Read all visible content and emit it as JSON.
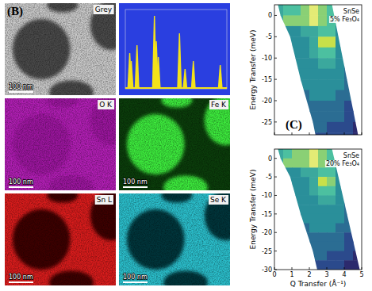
{
  "panels": {
    "b": {
      "label": "(B)",
      "micrographs": [
        {
          "title": "Grey",
          "color": "#c9c9c9",
          "particle_color": "#4a4a4a",
          "scale_bar": "100 nm"
        },
        {
          "title": "O K",
          "color": "#b11fb4",
          "particle_color": "#9c189f",
          "scale_bar": "100 nm"
        },
        {
          "title": "Fe K",
          "color": "#0b3d0b",
          "particle_color": "#3cea3c",
          "scale_bar": "100 nm"
        },
        {
          "title": "Sn L",
          "color": "#d81c1c",
          "particle_color": "#3c0606",
          "scale_bar": "100 nm"
        },
        {
          "title": "Se K",
          "color": "#2bbfcc",
          "particle_color": "#06363a",
          "scale_bar": "100 nm"
        }
      ]
    },
    "c": {
      "label": "(C)"
    }
  },
  "chart_data": [
    {
      "type": "spectrum",
      "x": [
        0.52,
        0.7,
        1.38,
        3.44,
        3.66,
        3.9,
        6.4,
        7.06,
        8.04,
        11.22
      ],
      "values": [
        45,
        35,
        55,
        92,
        60,
        40,
        70,
        25,
        35,
        30
      ],
      "xlim": [
        0,
        12
      ],
      "ylim": [
        0,
        100
      ],
      "color": "#f4e21a",
      "tick_labels": false
    },
    {
      "type": "heatmap",
      "text": [
        "SnSe",
        "5% Fe₃O₄"
      ],
      "ylabel": "Energy Transfer (meV)",
      "x_bins": [
        0,
        0.5,
        1,
        1.5,
        2,
        2.5,
        3,
        3.5,
        4,
        4.5,
        5
      ],
      "y_bins": [
        2.5,
        0,
        -2.5,
        -5,
        -7.5,
        -10,
        -12.5,
        -15,
        -17.5,
        -20,
        -22.5,
        -25,
        -27.5,
        -30
      ],
      "cells": [
        [
          5,
          6,
          6,
          7,
          9,
          7,
          6,
          null,
          null,
          null
        ],
        [
          5,
          7,
          7,
          7,
          9,
          7,
          6,
          5,
          null,
          null
        ],
        [
          null,
          4,
          4,
          5,
          5,
          6,
          6,
          4,
          null,
          null
        ],
        [
          null,
          4,
          4,
          4,
          5,
          8,
          8,
          4,
          null,
          null
        ],
        [
          null,
          4,
          4,
          4,
          5,
          6,
          6,
          4,
          null,
          null
        ],
        [
          null,
          null,
          4,
          4,
          4,
          5,
          5,
          4,
          3,
          null
        ],
        [
          null,
          null,
          4,
          4,
          4,
          4,
          4,
          4,
          3,
          null
        ],
        [
          null,
          null,
          3,
          4,
          4,
          4,
          4,
          4,
          3,
          null
        ],
        [
          null,
          null,
          null,
          3,
          4,
          4,
          4,
          3,
          3,
          null
        ],
        [
          null,
          null,
          null,
          3,
          3,
          3,
          3,
          3,
          2,
          2
        ],
        [
          null,
          null,
          null,
          3,
          3,
          3,
          3,
          3,
          2,
          2
        ],
        [
          null,
          null,
          null,
          null,
          3,
          3,
          2,
          2,
          2,
          1
        ],
        [
          null,
          null,
          null,
          null,
          2,
          2,
          2,
          2,
          2,
          1
        ]
      ],
      "cell_range": [
        0,
        10
      ],
      "coverage": {
        "q": [
          0.2,
          3.3,
          4.89,
          2.45,
          2.2,
          1.5,
          0.9,
          0.35
        ],
        "e": [
          2.5,
          2.5,
          -30,
          -30,
          -25,
          -15,
          -5,
          0
        ]
      },
      "xlim": [
        0,
        5
      ],
      "ylim": [
        -28,
        2.5
      ],
      "xticks": [
        0,
        1,
        2,
        3,
        4,
        5
      ],
      "yticks": [
        0,
        -5,
        -10,
        -15,
        -20,
        -25
      ],
      "tick_labels": "y"
    },
    {
      "type": "heatmap",
      "text": [
        "SnSe",
        "20% Fe₃O₄"
      ],
      "ylabel": "Energy Transfer (meV)",
      "xlabel": "Q Transfer (Å⁻¹)",
      "x_bins": [
        0,
        0.5,
        1,
        1.5,
        2,
        2.5,
        3,
        3.5,
        4,
        4.5,
        5
      ],
      "y_bins": [
        2.5,
        0,
        -2.5,
        -5,
        -7.5,
        -10,
        -12.5,
        -15,
        -17.5,
        -20,
        -22.5,
        -25,
        -27.5,
        -30
      ],
      "cells": [
        [
          5,
          6,
          7,
          7,
          9,
          7,
          6,
          null,
          null,
          null
        ],
        [
          5,
          7,
          7,
          7,
          9,
          7,
          6,
          5,
          null,
          null
        ],
        [
          null,
          4,
          4,
          5,
          5,
          6,
          6,
          4,
          null,
          null
        ],
        [
          null,
          4,
          4,
          4,
          5,
          8,
          7,
          4,
          null,
          null
        ],
        [
          null,
          4,
          4,
          4,
          5,
          6,
          6,
          4,
          null,
          null
        ],
        [
          null,
          null,
          4,
          4,
          4,
          5,
          5,
          4,
          3,
          null
        ],
        [
          null,
          null,
          4,
          4,
          4,
          4,
          4,
          4,
          3,
          null
        ],
        [
          null,
          null,
          3,
          4,
          4,
          4,
          4,
          4,
          3,
          null
        ],
        [
          null,
          null,
          null,
          3,
          4,
          4,
          4,
          3,
          3,
          null
        ],
        [
          null,
          null,
          null,
          3,
          3,
          3,
          3,
          3,
          2,
          2
        ],
        [
          null,
          null,
          null,
          3,
          3,
          3,
          3,
          3,
          2,
          2
        ],
        [
          null,
          null,
          null,
          null,
          3,
          3,
          2,
          2,
          2,
          1
        ],
        [
          null,
          null,
          null,
          null,
          2,
          2,
          2,
          2,
          1,
          1
        ]
      ],
      "cell_range": [
        0,
        10
      ],
      "coverage": {
        "q": [
          0.2,
          3.3,
          4.89,
          2.45,
          2.2,
          1.5,
          0.9,
          0.35
        ],
        "e": [
          2.5,
          2.5,
          -30,
          -30,
          -25,
          -15,
          -5,
          0
        ]
      },
      "xlim": [
        0,
        5
      ],
      "ylim": [
        -30,
        2.5
      ],
      "xticks": [
        0,
        1,
        2,
        3,
        4,
        5
      ],
      "yticks": [
        0,
        -5,
        -10,
        -15,
        -20,
        -25,
        -30
      ]
    }
  ]
}
